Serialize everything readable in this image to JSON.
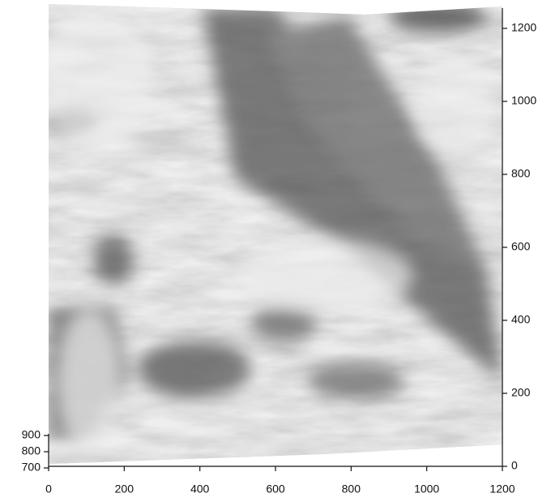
{
  "chart_data": {
    "type": "surface",
    "xlim": [
      0,
      1200
    ],
    "xticks": [
      0,
      200,
      400,
      600,
      800,
      1000,
      1200
    ],
    "ylim": [
      0,
      1250
    ],
    "yticks": [
      0,
      200,
      400,
      600,
      800,
      1000,
      1200
    ],
    "zlim": [
      700,
      900
    ],
    "zticks": [
      700,
      800,
      900
    ]
  }
}
